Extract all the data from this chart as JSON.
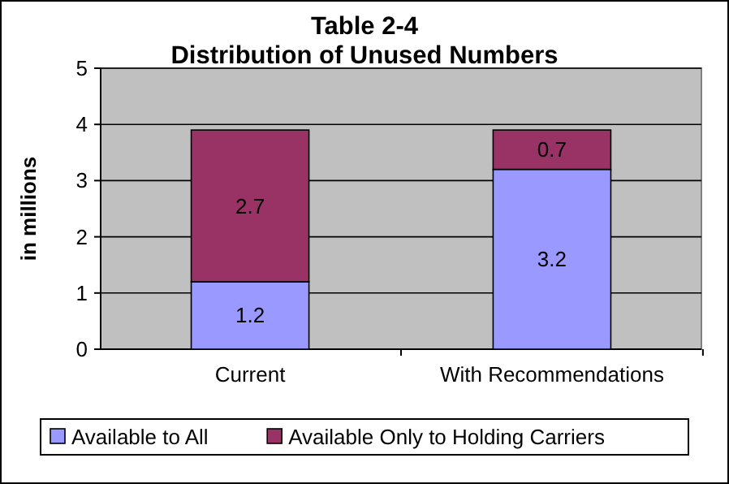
{
  "chart_data": {
    "type": "bar",
    "title": "Table 2-4",
    "subtitle": "Distribution of Unused Numbers",
    "ylabel": "in millions",
    "categories": [
      "Current",
      "With Recommendations"
    ],
    "stacked": true,
    "series": [
      {
        "name": "Available to All",
        "color": "#9999ff",
        "values": [
          1.2,
          3.2
        ]
      },
      {
        "name": "Available Only to Holding Carriers",
        "color": "#993366",
        "values": [
          2.7,
          0.7
        ]
      }
    ],
    "ylim": [
      0,
      5
    ],
    "yticks": [
      0,
      1,
      2,
      3,
      4,
      5
    ],
    "grid": "y",
    "legend": "bottom",
    "data_labels": true
  }
}
